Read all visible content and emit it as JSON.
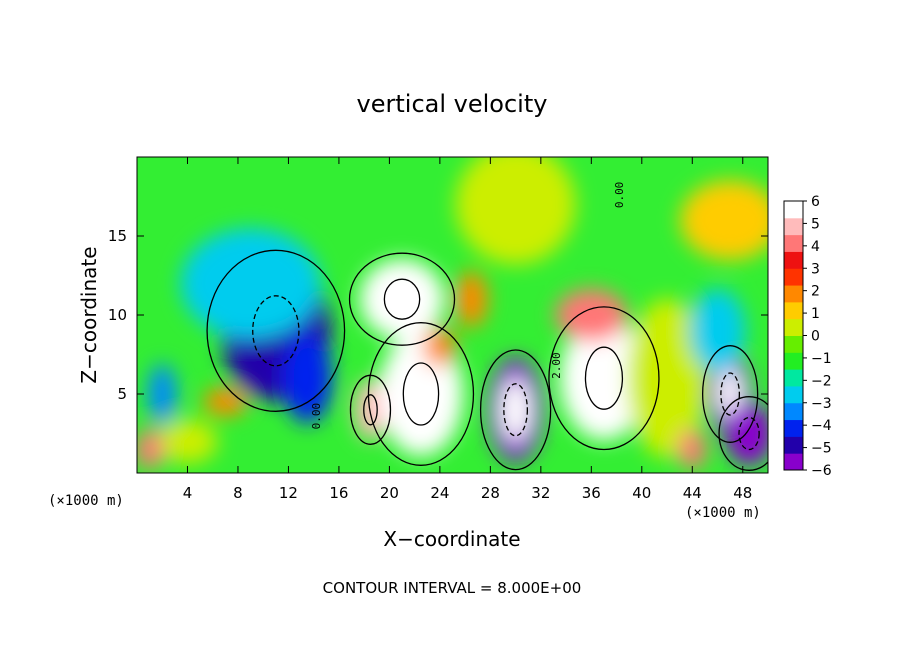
{
  "chart_data": {
    "type": "heatmap",
    "title": "vertical velocity",
    "xlabel": "X−coordinate",
    "ylabel": "Z−coordinate",
    "x_unit": "(×1000 m)",
    "x_unit_right": "(×1000 m)",
    "footer": "CONTOUR INTERVAL = 8.000E+00",
    "xlim": [
      0,
      50
    ],
    "ylim": [
      0,
      20
    ],
    "x_ticks": [
      4,
      8,
      12,
      16,
      20,
      24,
      28,
      32,
      36,
      40,
      44,
      48
    ],
    "y_ticks": [
      5,
      10,
      15
    ],
    "x_tick_labels": [
      "4",
      "8",
      "12",
      "16",
      "20",
      "24",
      "28",
      "32",
      "36",
      "40",
      "44",
      "48"
    ],
    "y_tick_labels": [
      "5",
      "10",
      "15"
    ],
    "colorbar": {
      "min": -6,
      "max": 6,
      "ticks": [
        "6",
        "5",
        "4",
        "3",
        "2",
        "1",
        "0",
        "−1",
        "−2",
        "−3",
        "−4",
        "−5",
        "−6"
      ],
      "colors": [
        "#8800cc",
        "#2200aa",
        "#0022ee",
        "#0088ff",
        "#00ccee",
        "#00e8a0",
        "#22ee22",
        "#66ee00",
        "#ccee00",
        "#ffcc00",
        "#ff8800",
        "#ff3300",
        "#ee1111",
        "#ff7777",
        "#ffbbbb",
        "#ffffff"
      ]
    },
    "contour_labels": [
      "0.00",
      "0.00",
      "2.00"
    ],
    "features": [
      {
        "x": 4,
        "z": 2,
        "w": 0.0
      },
      {
        "x": 11,
        "z": 9,
        "w": -5.0
      },
      {
        "x": 13.5,
        "z": 6,
        "w": -4.5
      },
      {
        "x": 9,
        "z": 12,
        "w": -3.0
      },
      {
        "x": 2,
        "z": 5,
        "w": -3.5
      },
      {
        "x": 1,
        "z": 1.5,
        "w": 4.0
      },
      {
        "x": 7,
        "z": 4.5,
        "w": 2.0
      },
      {
        "x": 18.5,
        "z": 4,
        "w": 5.0
      },
      {
        "x": 22.5,
        "z": 5,
        "w": 10.0
      },
      {
        "x": 21,
        "z": 11,
        "w": 6.0
      },
      {
        "x": 24,
        "z": 8,
        "w": 1.5
      },
      {
        "x": 26.5,
        "z": 11,
        "w": 1.5
      },
      {
        "x": 30,
        "z": 4,
        "w": -9.0
      },
      {
        "x": 37,
        "z": 6,
        "w": 9.0
      },
      {
        "x": 36,
        "z": 10,
        "w": 4.0
      },
      {
        "x": 42,
        "z": 6,
        "w": 0.5
      },
      {
        "x": 44,
        "z": 1.5,
        "w": 4.0
      },
      {
        "x": 47,
        "z": 5,
        "w": -7.0
      },
      {
        "x": 48.5,
        "z": 2.5,
        "w": -6.5
      },
      {
        "x": 46,
        "z": 9,
        "w": -2.5
      },
      {
        "x": 47,
        "z": 16,
        "w": 0.8
      },
      {
        "x": 30,
        "z": 17,
        "w": 0.3
      }
    ]
  }
}
